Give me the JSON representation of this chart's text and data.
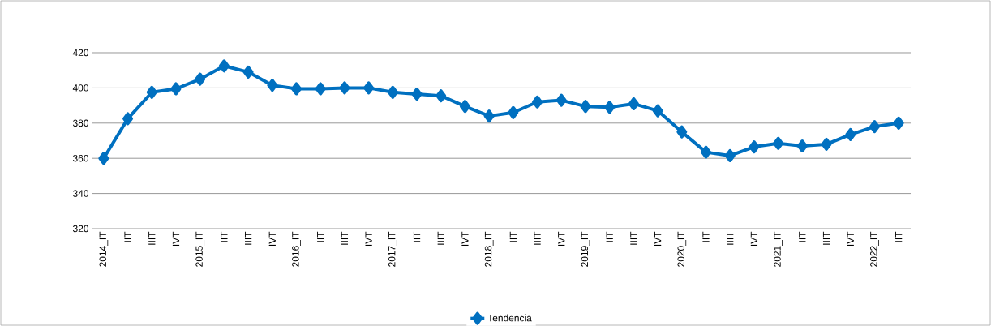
{
  "chart_data": {
    "type": "line",
    "categories": [
      "2014_IT",
      "IIT",
      "IIIT",
      "IVT",
      "2015_IT",
      "IIT",
      "IIIT",
      "IVT",
      "2016_IT",
      "IIT",
      "IIIT",
      "IVT",
      "2017_IT",
      "IIT",
      "IIIT",
      "IVT",
      "2018_IT",
      "IIT",
      "IIIT",
      "IVT",
      "2019_IT",
      "IIT",
      "IIIT",
      "IVT",
      "2020_IT",
      "IIT",
      "IIIT",
      "IVT",
      "2021_IT",
      "IIT",
      "IIIT",
      "IVT",
      "2022_IT",
      "IIT"
    ],
    "series": [
      {
        "name": "Tendencia",
        "color": "#0070c0",
        "values": [
          360,
          382.5,
          397.5,
          399.5,
          405,
          412.5,
          409,
          401.5,
          399.5,
          399.5,
          400,
          400,
          397.5,
          396.5,
          395.5,
          389.5,
          384,
          386,
          392,
          393,
          389.5,
          389,
          391,
          387,
          375,
          363.5,
          361.5,
          366.5,
          368.5,
          367,
          368,
          373.5,
          378,
          380
        ]
      }
    ],
    "ylim": [
      320,
      420
    ],
    "yticks": [
      320,
      340,
      360,
      380,
      400,
      420
    ],
    "grid": "y",
    "legend": "bottom",
    "marker": "diamond",
    "line_style": "solid"
  }
}
